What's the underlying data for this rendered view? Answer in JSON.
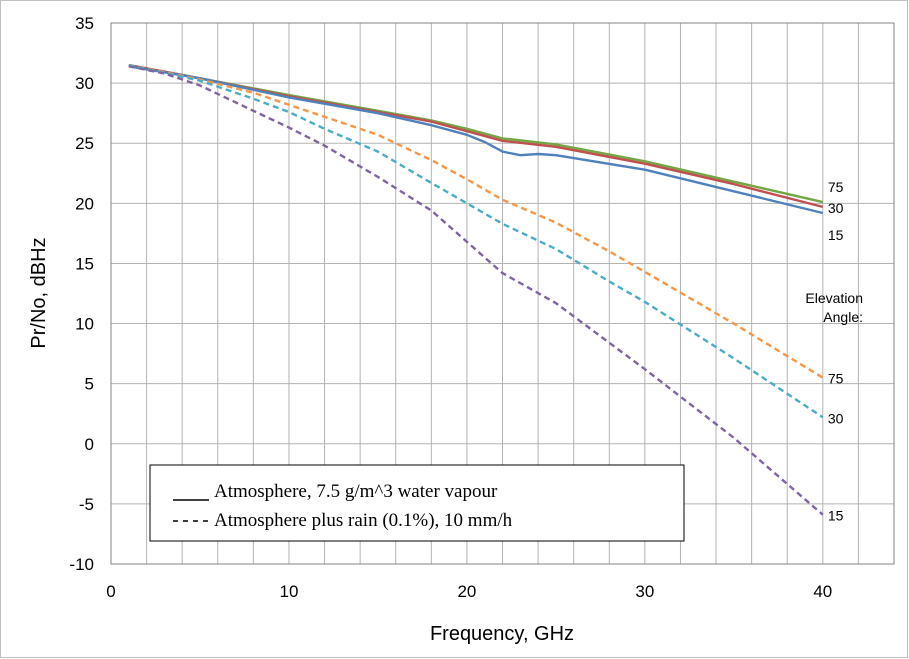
{
  "chart_data": {
    "type": "line",
    "title": "",
    "xlabel": "Frequency, GHz",
    "ylabel": "Pr/No, dBHz",
    "xlim": [
      0,
      44
    ],
    "ylim": [
      -10,
      35
    ],
    "x_ticks": [
      0,
      10,
      20,
      30,
      40
    ],
    "y_ticks": [
      35,
      30,
      25,
      20,
      15,
      10,
      5,
      0,
      -5,
      -10
    ],
    "x_tick_labels": [
      "0",
      "10",
      "20",
      "30",
      "40"
    ],
    "y_tick_labels": [
      "35",
      "30",
      "25",
      "20",
      "15",
      "10",
      "5",
      "0",
      "-5",
      "-10"
    ],
    "grid": true,
    "legend_position": "bottom-left",
    "legend": [
      {
        "label": "Atmosphere, 7.5 g/m^3 water vapour",
        "style": "solid"
      },
      {
        "label": "Atmosphere plus rain (0.1%), 10 mm/h",
        "style": "dashed"
      }
    ],
    "annotation": [
      "Elevation",
      "Angle:"
    ],
    "series": [
      {
        "end_label": "75",
        "style": "solid",
        "color": "#70a844",
        "x": [
          1,
          5,
          10,
          15,
          18,
          20,
          22,
          25,
          30,
          35,
          40
        ],
        "y": [
          31.5,
          30.4,
          29.0,
          27.7,
          26.9,
          26.2,
          25.4,
          24.9,
          23.5,
          21.8,
          20.1
        ]
      },
      {
        "end_label": "30",
        "style": "solid",
        "color": "#c0504d",
        "x": [
          1,
          5,
          10,
          15,
          18,
          20,
          22,
          25,
          30,
          35,
          40
        ],
        "y": [
          31.5,
          30.4,
          28.9,
          27.6,
          26.8,
          26.0,
          25.2,
          24.7,
          23.3,
          21.6,
          19.7
        ]
      },
      {
        "end_label": "15",
        "style": "solid",
        "color": "#4f81bd",
        "x": [
          1,
          5,
          10,
          15,
          18,
          20,
          21,
          22,
          23,
          24,
          25,
          30,
          35,
          40
        ],
        "y": [
          31.4,
          30.4,
          28.8,
          27.5,
          26.5,
          25.7,
          25.1,
          24.3,
          24.0,
          24.1,
          24.0,
          22.8,
          21.0,
          19.2
        ]
      },
      {
        "end_label": "75",
        "style": "dashed",
        "color": "#f79646",
        "x": [
          1,
          5,
          8,
          10,
          12,
          15,
          18,
          20,
          22,
          25,
          28,
          30,
          35,
          40
        ],
        "y": [
          31.5,
          30.3,
          29.2,
          28.2,
          27.2,
          25.7,
          23.6,
          22.0,
          20.3,
          18.4,
          16.0,
          14.3,
          10.0,
          5.5
        ]
      },
      {
        "end_label": "30",
        "style": "dashed",
        "color": "#4bacc6",
        "x": [
          1,
          5,
          8,
          10,
          12,
          15,
          18,
          20,
          22,
          25,
          28,
          30,
          35,
          40
        ],
        "y": [
          31.5,
          30.2,
          28.7,
          27.6,
          26.2,
          24.3,
          21.7,
          20.0,
          18.3,
          16.2,
          13.5,
          11.8,
          7.1,
          2.2
        ]
      },
      {
        "end_label": "15",
        "style": "dashed",
        "color": "#8064a2",
        "x": [
          1,
          3,
          5,
          8,
          10,
          12,
          15,
          18,
          20,
          22,
          25,
          28,
          30,
          35,
          40
        ],
        "y": [
          31.4,
          30.8,
          29.8,
          27.7,
          26.3,
          24.8,
          22.2,
          19.4,
          16.8,
          14.2,
          11.7,
          8.4,
          6.2,
          0.5,
          -5.9
        ]
      }
    ]
  }
}
